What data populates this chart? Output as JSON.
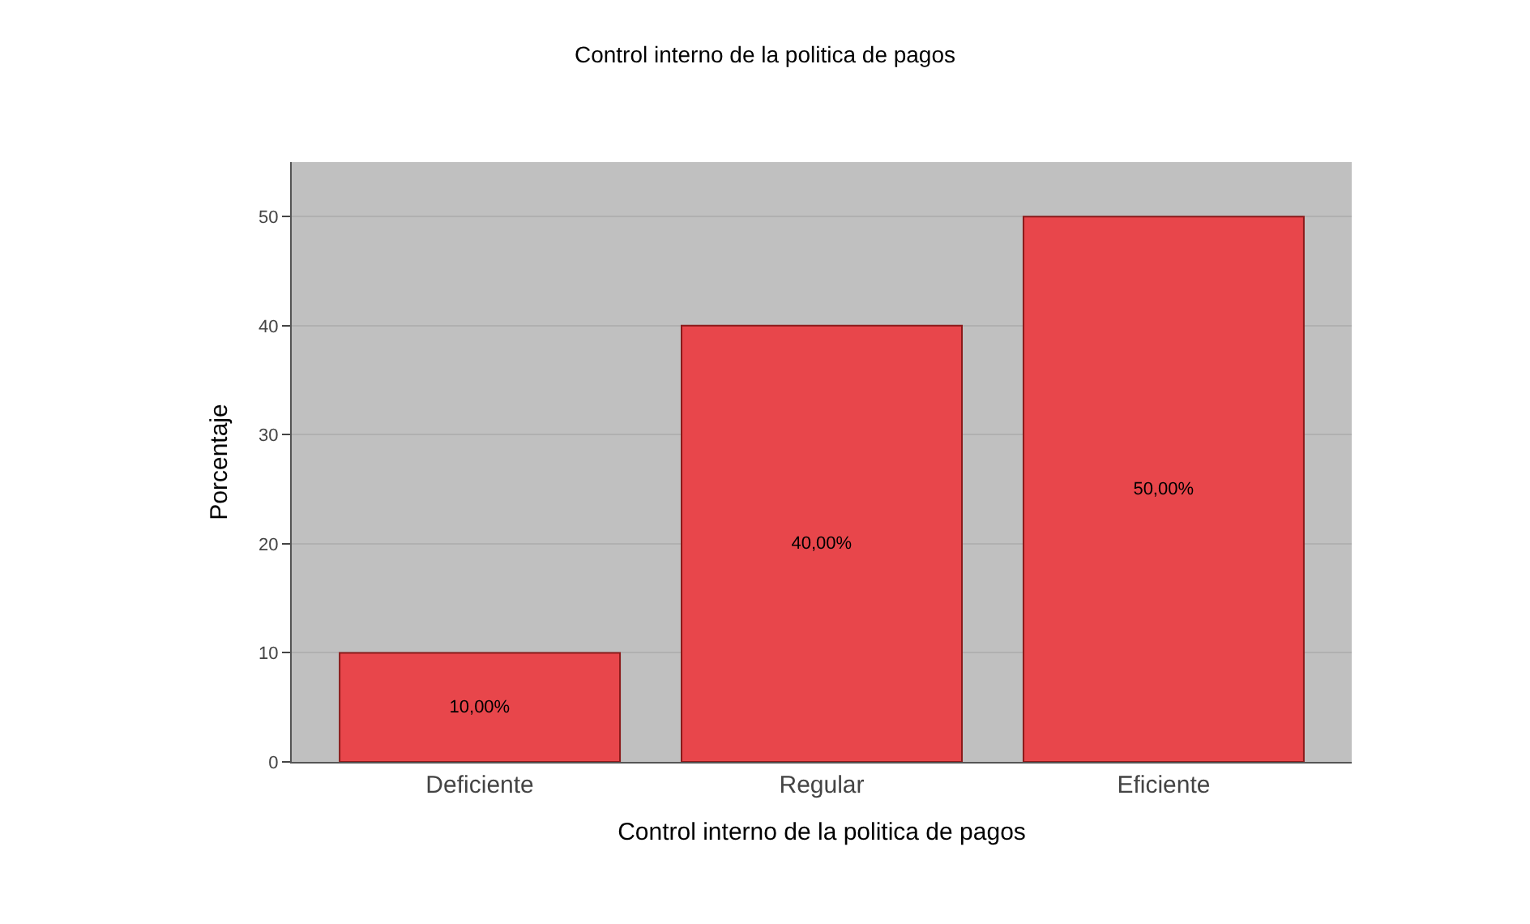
{
  "chart_data": {
    "type": "bar",
    "title": "Control interno de la politica de pagos",
    "xlabel": "Control interno de la politica de pagos",
    "ylabel": "Porcentaje",
    "categories": [
      "Deficiente",
      "Regular",
      "Eficiente"
    ],
    "values": [
      10,
      40,
      50
    ],
    "value_labels": [
      "10,00%",
      "40,00%",
      "50,00%"
    ],
    "color": "#e8464b",
    "ylim": [
      0,
      55
    ],
    "yticks": [
      0,
      10,
      20,
      30,
      40,
      50
    ],
    "grid": "y",
    "legend": false
  }
}
